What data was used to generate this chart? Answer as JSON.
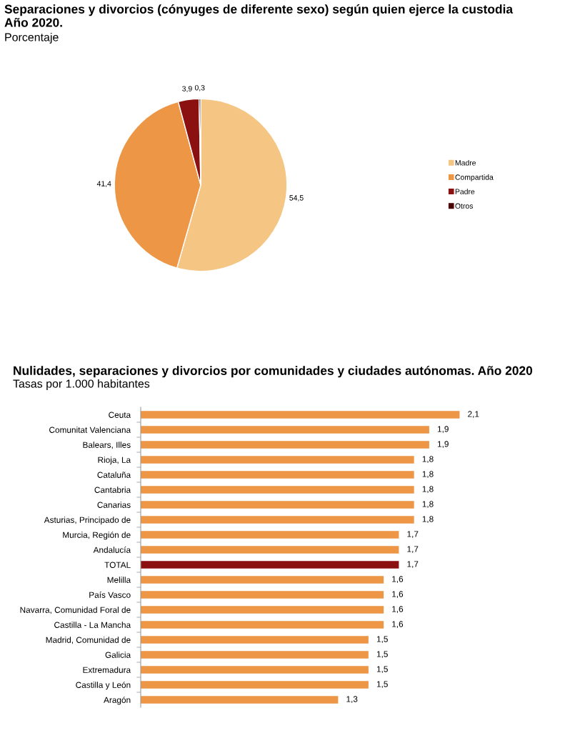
{
  "chart_data": [
    {
      "type": "pie",
      "title": "Separaciones y divorcios (cónyuges de diferente sexo) según quien ejerce la custodia\nAño 2020.",
      "subtitle": "Porcentaje",
      "categories": [
        "Madre",
        "Compartida",
        "Padre",
        "Otros"
      ],
      "values": [
        54.5,
        41.4,
        3.9,
        0.3
      ],
      "colors": [
        "#f5c583",
        "#ed9645",
        "#8b1010",
        "#4a0000"
      ],
      "value_labels": [
        "54,5",
        "41,4",
        "3,9",
        "0,3"
      ],
      "legend": "right"
    },
    {
      "type": "bar",
      "orientation": "horizontal",
      "title": "Nulidades, separaciones y divorcios por comunidades y ciudades autónomas. Año 2020",
      "subtitle": "Tasas por 1.000 habitantes",
      "categories": [
        "Ceuta",
        "Comunitat Valenciana",
        "Balears, Illes",
        "Rioja, La",
        "Cataluña",
        "Cantabria",
        "Canarias",
        "Asturias, Principado de",
        "Murcia, Región de",
        "Andalucía",
        "TOTAL",
        "Melilla",
        "País Vasco",
        "Navarra, Comunidad Foral de",
        "Castilla - La Mancha",
        "Madrid, Comunidad de",
        "Galicia",
        "Extremadura",
        "Castilla y León",
        "Aragón"
      ],
      "values": [
        2.1,
        1.9,
        1.9,
        1.8,
        1.8,
        1.8,
        1.8,
        1.8,
        1.7,
        1.7,
        1.7,
        1.6,
        1.6,
        1.6,
        1.6,
        1.5,
        1.5,
        1.5,
        1.5,
        1.3
      ],
      "colors": [
        "#ed9645",
        "#ed9645",
        "#ed9645",
        "#ed9645",
        "#ed9645",
        "#ed9645",
        "#ed9645",
        "#ed9645",
        "#ed9645",
        "#ed9645",
        "#8b1010",
        "#ed9645",
        "#ed9645",
        "#ed9645",
        "#ed9645",
        "#ed9645",
        "#ed9645",
        "#ed9645",
        "#ed9645",
        "#ed9645"
      ],
      "value_labels": [
        "2,1",
        "1,9",
        "1,9",
        "1,8",
        "1,8",
        "1,8",
        "1,8",
        "1,8",
        "1,7",
        "1,7",
        "1,7",
        "1,6",
        "1,6",
        "1,6",
        "1,6",
        "1,5",
        "1,5",
        "1,5",
        "1,5",
        "1,3"
      ]
    }
  ]
}
